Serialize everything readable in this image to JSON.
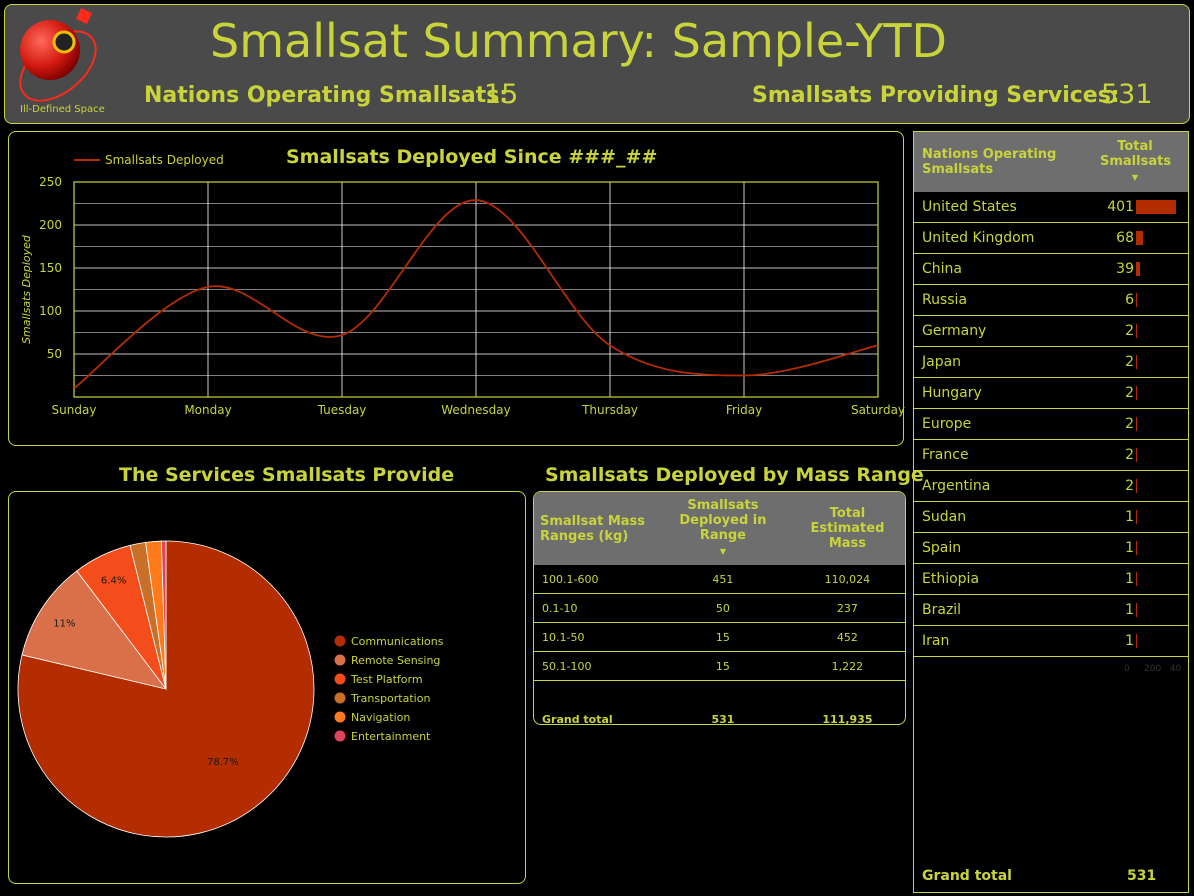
{
  "header": {
    "title": "Smallsat Summary: Sample-YTD",
    "logo_caption": "Ill-Defined Space",
    "nations_label": "Nations Operating Smallsats:",
    "nations_value": "15",
    "services_label": "Smallsats Providing Services:",
    "services_value": "531"
  },
  "colors": {
    "accent": "#c8d43a",
    "series": "#b32d00",
    "header_bg": "#4a4a4a",
    "table_header_bg": "#6e6e6e"
  },
  "chart_data": [
    {
      "type": "line",
      "title": "Smallsats Deployed Since ###_##",
      "ylabel": "Smallsats Deployed",
      "xlabel": "",
      "x": [
        "Sunday",
        "Monday",
        "Tuesday",
        "Wednesday",
        "Thursday",
        "Friday",
        "Saturday"
      ],
      "series": [
        {
          "name": "Smallsats Deployed",
          "values": [
            10,
            128,
            72,
            229,
            60,
            25,
            60
          ]
        }
      ],
      "ylim": [
        0,
        250
      ],
      "yticks": [
        50,
        100,
        150,
        200,
        250
      ],
      "grid": true,
      "legend": "top-left"
    },
    {
      "type": "pie",
      "title": "The Services Smallsats Provide",
      "slices": [
        {
          "label": "Communications",
          "value": 78.7,
          "color": "#b32d00",
          "display": "78.7%"
        },
        {
          "label": "Remote Sensing",
          "value": 11,
          "color": "#d9704a",
          "display": "11%"
        },
        {
          "label": "Test Platform",
          "value": 6.4,
          "color": "#f24d1a",
          "display": "6.4%"
        },
        {
          "label": "Transportation",
          "value": 1.7,
          "color": "#c8702a",
          "display": ""
        },
        {
          "label": "Navigation",
          "value": 1.7,
          "color": "#ff7a1a",
          "display": ""
        },
        {
          "label": "Entertainment",
          "value": 0.5,
          "color": "#e0445a",
          "display": ""
        }
      ],
      "legend": "right"
    },
    {
      "type": "table",
      "title": "Smallsats Deployed by Mass Range",
      "columns": [
        "Smallsat Mass Ranges (kg)",
        "Smallsats Deployed in Range",
        "Total Estimated Mass"
      ],
      "rows": [
        [
          "100.1-600",
          "451",
          "110,024"
        ],
        [
          "0.1-10",
          "50",
          "237"
        ],
        [
          "10.1-50",
          "15",
          "452"
        ],
        [
          "50.1-100",
          "15",
          "1,222"
        ]
      ],
      "total": [
        "Grand total",
        "531",
        "111,935"
      ]
    },
    {
      "type": "bar",
      "title": "",
      "columns": [
        "Nations Operating Smallsats",
        "Total Smallsats"
      ],
      "categories": [
        "United States",
        "United Kingdom",
        "China",
        "Russia",
        "Germany",
        "Japan",
        "Hungary",
        "Europe",
        "France",
        "Argentina",
        "Sudan",
        "Spain",
        "Ethiopia",
        "Brazil",
        "Iran"
      ],
      "values": [
        401,
        68,
        39,
        6,
        2,
        2,
        2,
        2,
        2,
        2,
        1,
        1,
        1,
        1,
        1
      ],
      "axis_ticks": [
        "0",
        "200",
        "40"
      ],
      "xlim": [
        0,
        440
      ],
      "total_label": "Grand total",
      "total_value": "531"
    }
  ]
}
